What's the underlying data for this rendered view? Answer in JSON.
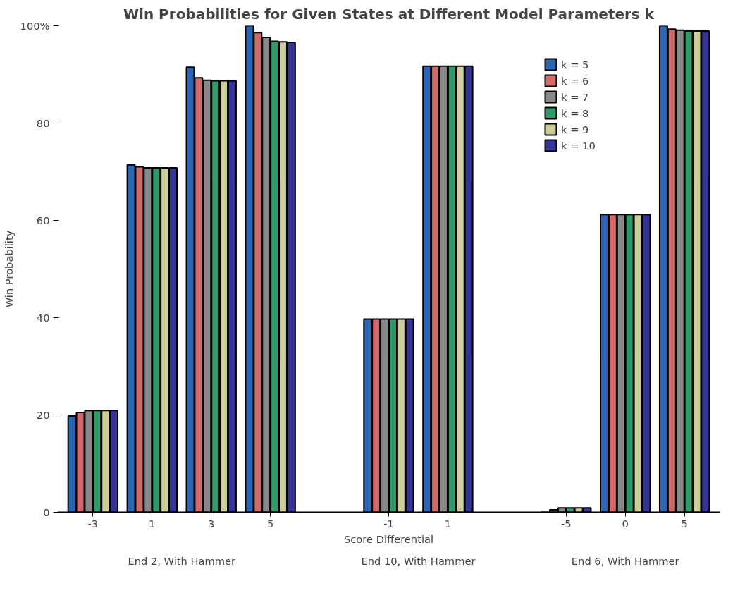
{
  "chart_data": {
    "type": "bar",
    "title": "Win Probabilities for Given States at Different Model Parameters k",
    "xlabel": "Score Differential",
    "ylabel": "Win Probability",
    "categories": [
      "-3",
      "1",
      "3",
      "5",
      null,
      "-1",
      "1",
      null,
      "-5",
      "0",
      "5"
    ],
    "series": [
      {
        "name": "k = 5",
        "color": "#2a66b3",
        "values": [
          19.8,
          71.4,
          91.5,
          100,
          null,
          39.7,
          91.7,
          null,
          0,
          61.2,
          100
        ]
      },
      {
        "name": "k = 6",
        "color": "#d4686a",
        "values": [
          20.5,
          71.0,
          89.3,
          98.6,
          null,
          39.7,
          91.7,
          null,
          0.5,
          61.2,
          99.3
        ]
      },
      {
        "name": "k = 7",
        "color": "#888888",
        "values": [
          20.9,
          70.8,
          88.8,
          97.6,
          null,
          39.7,
          91.7,
          null,
          0.9,
          61.2,
          99.1
        ]
      },
      {
        "name": "k = 8",
        "color": "#2e9b68",
        "values": [
          20.9,
          70.8,
          88.7,
          96.8,
          null,
          39.7,
          91.7,
          null,
          0.9,
          61.2,
          98.9
        ]
      },
      {
        "name": "k = 9",
        "color": "#cdcd98",
        "values": [
          20.9,
          70.8,
          88.7,
          96.7,
          null,
          39.7,
          91.7,
          null,
          0.9,
          61.2,
          98.9
        ]
      },
      {
        "name": "k = 10",
        "color": "#353597",
        "values": [
          20.9,
          70.8,
          88.7,
          96.6,
          null,
          39.7,
          91.7,
          null,
          0.9,
          61.2,
          98.9
        ]
      }
    ],
    "ylim": [
      0,
      100
    ],
    "yticks": [
      0,
      20,
      40,
      60,
      80,
      {
        "value": 100,
        "label": "100%"
      }
    ],
    "grid": false,
    "legend": "top right",
    "annotations": [
      "End 2, With Hammer",
      "End 10, With Hammer",
      "End 6, With Hammer"
    ]
  }
}
